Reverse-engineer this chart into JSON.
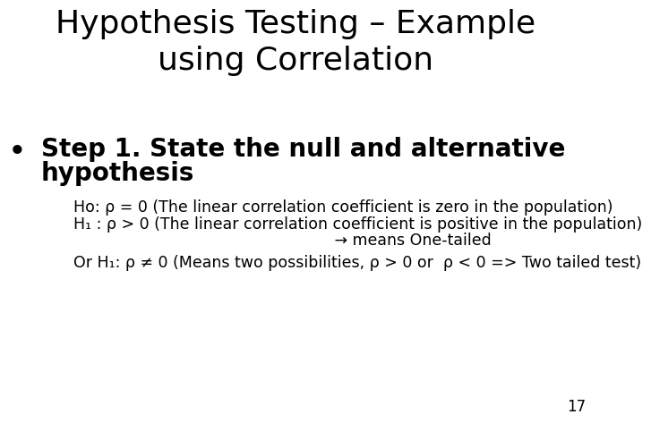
{
  "title_line1": "Hypothesis Testing – Example",
  "title_line2": "using Correlation",
  "title_fontsize": 26,
  "bullet_marker": "•",
  "bullet_text_line1": "Step 1. State the null and alternative",
  "bullet_text_line2": "hypothesis",
  "bullet_fontsize": 20,
  "body_lines": [
    "Ho: ρ = 0 (The linear correlation coefficient is zero in the population)",
    "H₁ : ρ > 0 (The linear correlation coefficient is positive in the population)",
    "                                                     → means One-tailed",
    "Or H₁: ρ ≠ 0 (Means two possibilities, ρ > 0 or  ρ < 0 => Two tailed test)"
  ],
  "body_fontsize": 12.5,
  "page_number": "17",
  "background_color": "#ffffff",
  "text_color": "#000000"
}
